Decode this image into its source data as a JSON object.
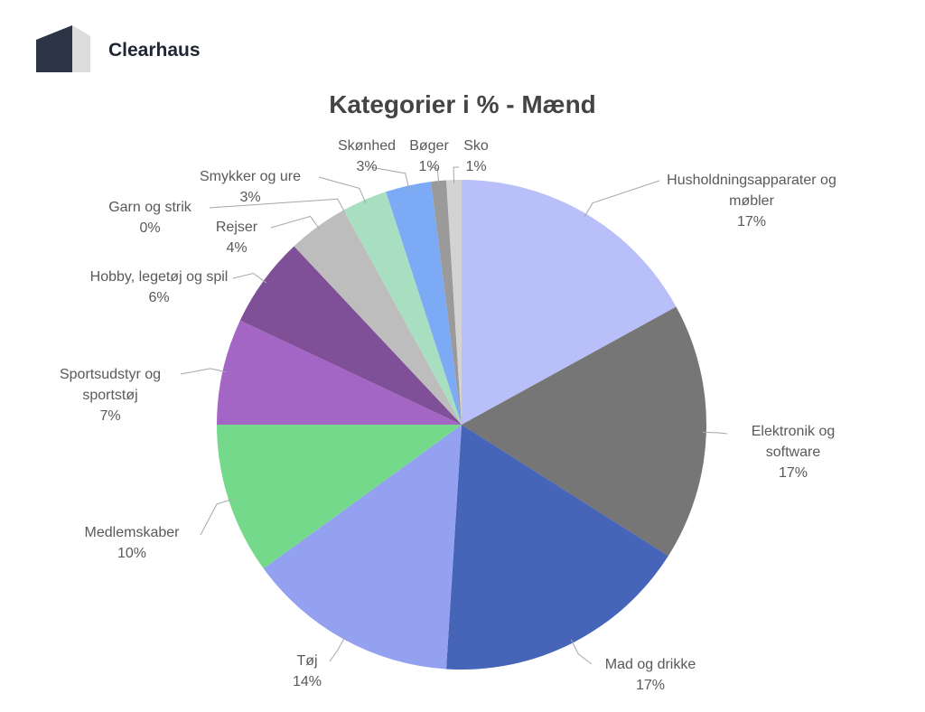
{
  "brand": "Clearhaus",
  "chart_data": {
    "type": "pie",
    "title": "Kategorier i % - Mænd",
    "categories": [
      "Husholdningsapparater og møbler",
      "Elektronik og software",
      "Mad og drikke",
      "Tøj",
      "Medlemskaber",
      "Sportsudstyr og sportstøj",
      "Hobby, legetøj og spil",
      "Rejser",
      "Garn og strik",
      "Smykker og ure",
      "Skønhed",
      "Bøger",
      "Sko"
    ],
    "values": [
      17,
      17,
      17,
      14,
      10,
      7,
      6,
      4,
      0,
      3,
      3,
      1,
      1
    ],
    "value_labels": [
      "17%",
      "17%",
      "17%",
      "14%",
      "10%",
      "7%",
      "6%",
      "4%",
      "0%",
      "3%",
      "3%",
      "1%",
      "1%"
    ],
    "colors": [
      "#b9bff8",
      "#767676",
      "#4665b8",
      "#94a0f0",
      "#74d98b",
      "#a466c4",
      "#7f4f97",
      "#bdbdbd",
      "#d9b3f5",
      "#a8dfc0",
      "#7caaf5",
      "#9a9a9a",
      "#d3d3d3"
    ]
  }
}
